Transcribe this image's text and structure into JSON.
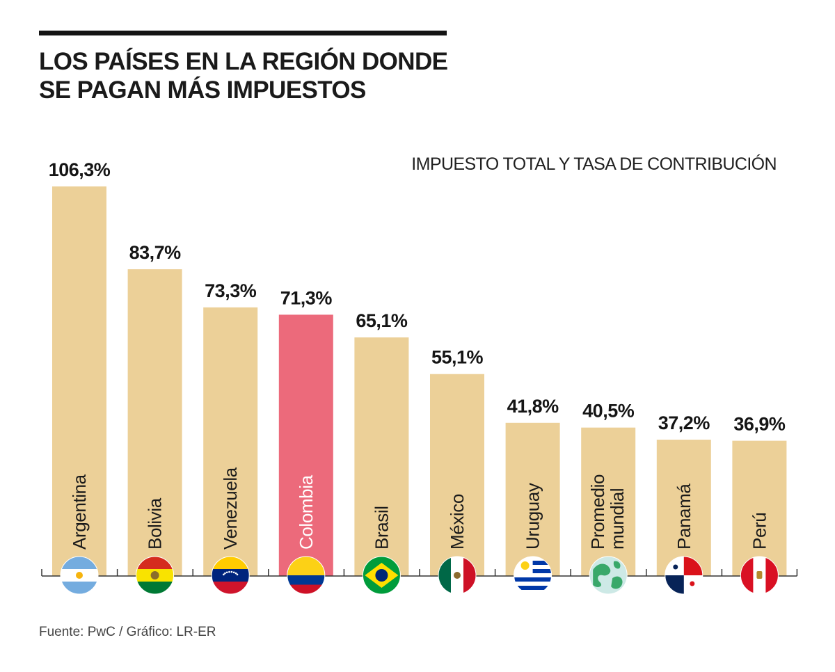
{
  "title_line1": "LOS PAÍSES EN LA REGIÓN DONDE",
  "title_line2": "SE PAGAN MÁS IMPUESTOS",
  "source": "Fuente: PwC / Gráfico: LR-ER",
  "colors": {
    "bar": "#ecd098",
    "highlight": "#ec6a7b",
    "axis": "#333333"
  },
  "chart_data": {
    "type": "bar",
    "title": "LOS PAÍSES EN LA REGIÓN DONDE SE PAGAN MÁS IMPUESTOS",
    "subtitle": "IMPUESTO TOTAL Y TASA DE CONTRIBUCIÓN",
    "categories": [
      "Argentina",
      "Bolivia",
      "Venezuela",
      "Colombia",
      "Brasil",
      "México",
      "Uruguay",
      "Promedio mundial",
      "Panamá",
      "Perú"
    ],
    "values": [
      106.3,
      83.7,
      73.3,
      71.3,
      65.1,
      55.1,
      41.8,
      40.5,
      37.2,
      36.9
    ],
    "value_labels": [
      "106,3%",
      "83,7%",
      "73,3%",
      "71,3%",
      "65,1%",
      "55,1%",
      "41,8%",
      "40,5%",
      "37,2%",
      "36,9%"
    ],
    "highlight": "Colombia",
    "flags": [
      "argentina-flag",
      "bolivia-flag",
      "venezuela-flag",
      "colombia-flag",
      "brazil-flag",
      "mexico-flag",
      "uruguay-flag",
      "world-globe",
      "panama-flag",
      "peru-flag"
    ],
    "ylim": [
      0,
      106.3
    ],
    "xlabel": "",
    "ylabel": ""
  }
}
